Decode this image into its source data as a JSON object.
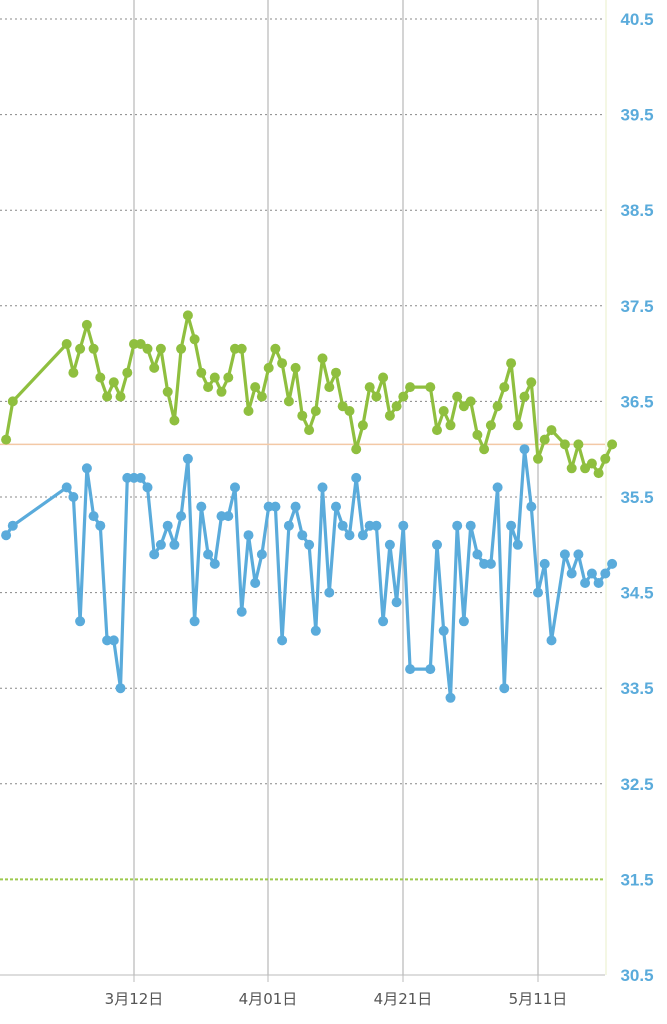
{
  "colors": {
    "series_green": "#8fbf3f",
    "series_blue": "#5aabdb",
    "axis_tick_text": "#5aabdb",
    "x_tick_text": "#555555",
    "grid_horizontal": "#888888",
    "grid_vertical": "#aaaaaa",
    "reference_line": "#f3c9a6",
    "baseline_dashed": "#9dc94d",
    "right_axis_line": "#e8efc8",
    "bottom_axis_line": "#bbbbbb"
  },
  "chart_data": {
    "type": "line",
    "title": "",
    "xlabel": "",
    "ylabel": "",
    "ylim": [
      30.5,
      40.5
    ],
    "xlim": [
      "2023-02-21",
      "2023-05-21"
    ],
    "y_ticks": [
      "40.5",
      "39.5",
      "38.5",
      "37.5",
      "36.5",
      "35.5",
      "34.5",
      "33.5",
      "32.5",
      "31.5",
      "30.5"
    ],
    "x_ticks": [
      {
        "date": "2023-03-12",
        "label": "3月12日"
      },
      {
        "date": "2023-04-01",
        "label": "4月01日"
      },
      {
        "date": "2023-04-21",
        "label": "4月21日"
      },
      {
        "date": "2023-05-11",
        "label": "5月11日"
      }
    ],
    "grid": true,
    "reference_line_y": 36.05,
    "dashed_line_y": 31.5,
    "series": [
      {
        "values": [
          [
            "2023-02-21",
            36.1
          ],
          [
            "2023-02-22",
            36.5
          ],
          [
            "2023-03-02",
            37.1
          ],
          [
            "2023-03-03",
            36.8
          ],
          [
            "2023-03-04",
            37.05
          ],
          [
            "2023-03-05",
            37.3
          ],
          [
            "2023-03-06",
            37.05
          ],
          [
            "2023-03-07",
            36.75
          ],
          [
            "2023-03-08",
            36.55
          ],
          [
            "2023-03-09",
            36.7
          ],
          [
            "2023-03-10",
            36.55
          ],
          [
            "2023-03-11",
            36.8
          ],
          [
            "2023-03-12",
            37.1
          ],
          [
            "2023-03-13",
            37.1
          ],
          [
            "2023-03-14",
            37.05
          ],
          [
            "2023-03-15",
            36.85
          ],
          [
            "2023-03-16",
            37.05
          ],
          [
            "2023-03-17",
            36.6
          ],
          [
            "2023-03-18",
            36.3
          ],
          [
            "2023-03-19",
            37.05
          ],
          [
            "2023-03-20",
            37.4
          ],
          [
            "2023-03-21",
            37.15
          ],
          [
            "2023-03-22",
            36.8
          ],
          [
            "2023-03-23",
            36.65
          ],
          [
            "2023-03-24",
            36.75
          ],
          [
            "2023-03-25",
            36.6
          ],
          [
            "2023-03-26",
            36.75
          ],
          [
            "2023-03-27",
            37.05
          ],
          [
            "2023-03-28",
            37.05
          ],
          [
            "2023-03-29",
            36.4
          ],
          [
            "2023-03-30",
            36.65
          ],
          [
            "2023-03-31",
            36.55
          ],
          [
            "2023-04-01",
            36.85
          ],
          [
            "2023-04-02",
            37.05
          ],
          [
            "2023-04-03",
            36.9
          ],
          [
            "2023-04-04",
            36.5
          ],
          [
            "2023-04-05",
            36.85
          ],
          [
            "2023-04-06",
            36.35
          ],
          [
            "2023-04-07",
            36.2
          ],
          [
            "2023-04-08",
            36.4
          ],
          [
            "2023-04-09",
            36.95
          ],
          [
            "2023-04-10",
            36.65
          ],
          [
            "2023-04-11",
            36.8
          ],
          [
            "2023-04-12",
            36.45
          ],
          [
            "2023-04-13",
            36.4
          ],
          [
            "2023-04-14",
            36.0
          ],
          [
            "2023-04-15",
            36.25
          ],
          [
            "2023-04-16",
            36.65
          ],
          [
            "2023-04-17",
            36.55
          ],
          [
            "2023-04-18",
            36.75
          ],
          [
            "2023-04-19",
            36.35
          ],
          [
            "2023-04-20",
            36.45
          ],
          [
            "2023-04-21",
            36.55
          ],
          [
            "2023-04-22",
            36.65
          ],
          [
            "2023-04-25",
            36.65
          ],
          [
            "2023-04-26",
            36.2
          ],
          [
            "2023-04-27",
            36.4
          ],
          [
            "2023-04-28",
            36.25
          ],
          [
            "2023-04-29",
            36.55
          ],
          [
            "2023-04-30",
            36.45
          ],
          [
            "2023-05-01",
            36.5
          ],
          [
            "2023-05-02",
            36.15
          ],
          [
            "2023-05-03",
            36.0
          ],
          [
            "2023-05-04",
            36.25
          ],
          [
            "2023-05-05",
            36.45
          ],
          [
            "2023-05-06",
            36.65
          ],
          [
            "2023-05-07",
            36.9
          ],
          [
            "2023-05-08",
            36.25
          ],
          [
            "2023-05-09",
            36.55
          ],
          [
            "2023-05-10",
            36.7
          ],
          [
            "2023-05-11",
            35.9
          ],
          [
            "2023-05-12",
            36.1
          ],
          [
            "2023-05-13",
            36.2
          ],
          [
            "2023-05-15",
            36.05
          ],
          [
            "2023-05-16",
            35.8
          ],
          [
            "2023-05-17",
            36.05
          ],
          [
            "2023-05-18",
            35.8
          ],
          [
            "2023-05-19",
            35.85
          ],
          [
            "2023-05-20",
            35.75
          ],
          [
            "2023-05-21",
            35.9
          ],
          [
            "2023-05-22",
            36.05
          ]
        ]
      },
      {
        "values": [
          [
            "2023-02-21",
            35.1
          ],
          [
            "2023-02-22",
            35.2
          ],
          [
            "2023-03-02",
            35.6
          ],
          [
            "2023-03-03",
            35.5
          ],
          [
            "2023-03-04",
            34.2
          ],
          [
            "2023-03-05",
            35.8
          ],
          [
            "2023-03-06",
            35.3
          ],
          [
            "2023-03-07",
            35.2
          ],
          [
            "2023-03-08",
            34.0
          ],
          [
            "2023-03-09",
            34.0
          ],
          [
            "2023-03-10",
            33.5
          ],
          [
            "2023-03-11",
            35.7
          ],
          [
            "2023-03-12",
            35.7
          ],
          [
            "2023-03-13",
            35.7
          ],
          [
            "2023-03-14",
            35.6
          ],
          [
            "2023-03-15",
            34.9
          ],
          [
            "2023-03-16",
            35.0
          ],
          [
            "2023-03-17",
            35.2
          ],
          [
            "2023-03-18",
            35.0
          ],
          [
            "2023-03-19",
            35.3
          ],
          [
            "2023-03-20",
            35.9
          ],
          [
            "2023-03-21",
            34.2
          ],
          [
            "2023-03-22",
            35.4
          ],
          [
            "2023-03-23",
            34.9
          ],
          [
            "2023-03-24",
            34.8
          ],
          [
            "2023-03-25",
            35.3
          ],
          [
            "2023-03-26",
            35.3
          ],
          [
            "2023-03-27",
            35.6
          ],
          [
            "2023-03-28",
            34.3
          ],
          [
            "2023-03-29",
            35.1
          ],
          [
            "2023-03-30",
            34.6
          ],
          [
            "2023-03-31",
            34.9
          ],
          [
            "2023-04-01",
            35.4
          ],
          [
            "2023-04-02",
            35.4
          ],
          [
            "2023-04-03",
            34.0
          ],
          [
            "2023-04-04",
            35.2
          ],
          [
            "2023-04-05",
            35.4
          ],
          [
            "2023-04-06",
            35.1
          ],
          [
            "2023-04-07",
            35.0
          ],
          [
            "2023-04-08",
            34.1
          ],
          [
            "2023-04-09",
            35.6
          ],
          [
            "2023-04-10",
            34.5
          ],
          [
            "2023-04-11",
            35.4
          ],
          [
            "2023-04-12",
            35.2
          ],
          [
            "2023-04-13",
            35.1
          ],
          [
            "2023-04-14",
            35.7
          ],
          [
            "2023-04-15",
            35.1
          ],
          [
            "2023-04-16",
            35.2
          ],
          [
            "2023-04-17",
            35.2
          ],
          [
            "2023-04-18",
            34.2
          ],
          [
            "2023-04-19",
            35.0
          ],
          [
            "2023-04-20",
            34.4
          ],
          [
            "2023-04-21",
            35.2
          ],
          [
            "2023-04-22",
            33.7
          ],
          [
            "2023-04-25",
            33.7
          ],
          [
            "2023-04-26",
            35.0
          ],
          [
            "2023-04-27",
            34.1
          ],
          [
            "2023-04-28",
            33.4
          ],
          [
            "2023-04-29",
            35.2
          ],
          [
            "2023-04-30",
            34.2
          ],
          [
            "2023-05-01",
            35.2
          ],
          [
            "2023-05-02",
            34.9
          ],
          [
            "2023-05-03",
            34.8
          ],
          [
            "2023-05-04",
            34.8
          ],
          [
            "2023-05-05",
            35.6
          ],
          [
            "2023-05-06",
            33.5
          ],
          [
            "2023-05-07",
            35.2
          ],
          [
            "2023-05-08",
            35.0
          ],
          [
            "2023-05-09",
            36.0
          ],
          [
            "2023-05-10",
            35.4
          ],
          [
            "2023-05-11",
            34.5
          ],
          [
            "2023-05-12",
            34.8
          ],
          [
            "2023-05-13",
            34.0
          ],
          [
            "2023-05-15",
            34.9
          ],
          [
            "2023-05-16",
            34.7
          ],
          [
            "2023-05-17",
            34.9
          ],
          [
            "2023-05-18",
            34.6
          ],
          [
            "2023-05-19",
            34.7
          ],
          [
            "2023-05-20",
            34.6
          ],
          [
            "2023-05-21",
            34.7
          ],
          [
            "2023-05-22",
            34.8
          ]
        ]
      }
    ]
  }
}
